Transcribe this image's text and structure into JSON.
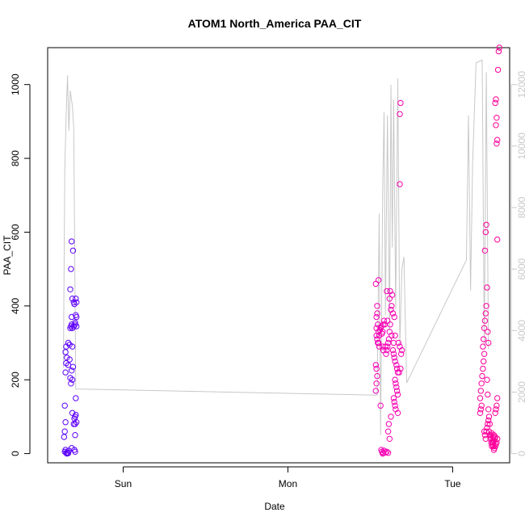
{
  "chart_data": {
    "type": "scatter",
    "title": "ATOM1 North_America PAA_CIT",
    "xlabel": "Date",
    "ylabel": "PAA_CIT",
    "x_ticks": [
      {
        "label": "Sun",
        "x": 24.0
      },
      {
        "label": "Mon",
        "x": 48.0
      },
      {
        "label": "Tue",
        "x": 72.0
      }
    ],
    "xlim": [
      13.0,
      80.3
    ],
    "y_left": {
      "ticks": [
        0,
        200,
        400,
        600,
        800,
        1000
      ],
      "ylim": [
        -25,
        1100
      ]
    },
    "y_right": {
      "ticks": [
        0,
        2000,
        4000,
        6000,
        8000,
        10000,
        12000
      ],
      "ylim": [
        -300,
        13200
      ],
      "color": "#c8c8c8"
    },
    "grid": false,
    "point_style": "open-circle",
    "color_gradient": [
      "#5500ff",
      "#ee00cc",
      "#ff0099"
    ],
    "series": [
      {
        "marker": "circle",
        "points": [
          [
            15.5,
            5
          ],
          [
            15.6,
            10
          ],
          [
            15.7,
            2
          ],
          [
            15.8,
            0
          ],
          [
            15.9,
            3
          ],
          [
            16.0,
            1
          ],
          [
            16.1,
            8
          ],
          [
            15.4,
            45
          ],
          [
            15.5,
            60
          ],
          [
            15.6,
            85
          ],
          [
            15.5,
            130
          ],
          [
            15.6,
            220
          ],
          [
            15.7,
            245
          ],
          [
            15.8,
            260
          ],
          [
            15.6,
            275
          ],
          [
            15.7,
            290
          ],
          [
            16.0,
            240
          ],
          [
            16.2,
            255
          ],
          [
            16.5,
            225
          ],
          [
            16.3,
            205
          ],
          [
            16.4,
            190
          ],
          [
            16.7,
            235
          ],
          [
            16.2,
            295
          ],
          [
            16.6,
            290
          ],
          [
            16.0,
            300
          ],
          [
            16.4,
            345
          ],
          [
            16.6,
            340
          ],
          [
            16.8,
            345
          ],
          [
            16.5,
            350
          ],
          [
            17.0,
            350
          ],
          [
            17.2,
            345
          ],
          [
            16.3,
            340
          ],
          [
            16.5,
            370
          ],
          [
            17.1,
            375
          ],
          [
            17.2,
            370
          ],
          [
            16.8,
            410
          ],
          [
            16.6,
            420
          ],
          [
            17.1,
            420
          ],
          [
            17.2,
            410
          ],
          [
            16.3,
            445
          ],
          [
            16.9,
            405
          ],
          [
            16.4,
            500
          ],
          [
            16.5,
            575
          ],
          [
            16.7,
            550
          ],
          [
            17.0,
            355
          ],
          [
            16.6,
            110
          ],
          [
            16.9,
            95
          ],
          [
            17.0,
            100
          ],
          [
            17.1,
            105
          ],
          [
            17.2,
            85
          ],
          [
            16.8,
            80
          ],
          [
            17.0,
            80
          ],
          [
            16.5,
            15
          ],
          [
            16.9,
            10
          ],
          [
            17.0,
            5
          ],
          [
            17.1,
            150
          ],
          [
            16.6,
            200
          ],
          [
            17.0,
            50
          ],
          [
            60.8,
            170
          ],
          [
            60.9,
            190
          ],
          [
            61.0,
            210
          ],
          [
            60.8,
            240
          ],
          [
            60.9,
            230
          ],
          [
            61.0,
            400
          ],
          [
            60.8,
            460
          ],
          [
            61.2,
            470
          ],
          [
            60.9,
            370
          ],
          [
            61.0,
            380
          ],
          [
            60.9,
            340
          ],
          [
            61.1,
            350
          ],
          [
            60.9,
            320
          ],
          [
            61.0,
            310
          ],
          [
            61.1,
            300
          ],
          [
            61.2,
            330
          ],
          [
            61.3,
            320
          ],
          [
            61.4,
            335
          ],
          [
            61.5,
            340
          ],
          [
            61.6,
            345
          ],
          [
            61.7,
            325
          ],
          [
            61.2,
            300
          ],
          [
            61.3,
            290
          ],
          [
            61.8,
            330
          ],
          [
            61.9,
            350
          ],
          [
            62.0,
            360
          ],
          [
            62.1,
            350
          ],
          [
            61.8,
            290
          ],
          [
            61.9,
            280
          ],
          [
            62.2,
            290
          ],
          [
            62.3,
            270
          ],
          [
            62.4,
            280
          ],
          [
            62.5,
            290
          ],
          [
            62.6,
            300
          ],
          [
            62.7,
            310
          ],
          [
            62.8,
            330
          ],
          [
            62.9,
            350
          ],
          [
            63.0,
            390
          ],
          [
            63.1,
            400
          ],
          [
            62.8,
            420
          ],
          [
            63.2,
            430
          ],
          [
            62.9,
            440
          ],
          [
            63.3,
            380
          ],
          [
            63.5,
            370
          ],
          [
            63.6,
            320
          ],
          [
            63.3,
            280
          ],
          [
            63.4,
            270
          ],
          [
            63.5,
            260
          ],
          [
            63.6,
            250
          ],
          [
            63.8,
            240
          ],
          [
            63.9,
            230
          ],
          [
            64.0,
            220
          ],
          [
            63.6,
            200
          ],
          [
            63.7,
            190
          ],
          [
            63.8,
            180
          ],
          [
            63.9,
            170
          ],
          [
            64.0,
            160
          ],
          [
            63.4,
            150
          ],
          [
            63.5,
            140
          ],
          [
            63.6,
            130
          ],
          [
            63.7,
            120
          ],
          [
            62.6,
            60
          ],
          [
            62.7,
            80
          ],
          [
            63.0,
            100
          ],
          [
            61.5,
            130
          ],
          [
            61.6,
            10
          ],
          [
            61.7,
            5
          ],
          [
            61.8,
            0
          ],
          [
            61.9,
            2
          ],
          [
            62.0,
            8
          ],
          [
            62.2,
            3
          ],
          [
            62.4,
            5
          ],
          [
            62.6,
            2
          ],
          [
            62.8,
            40
          ],
          [
            64.0,
            110
          ],
          [
            64.2,
            220
          ],
          [
            64.4,
            230
          ],
          [
            64.5,
            270
          ],
          [
            64.6,
            280
          ],
          [
            64.3,
            290
          ],
          [
            64.1,
            300
          ],
          [
            64.3,
            920
          ],
          [
            64.4,
            950
          ],
          [
            64.3,
            730
          ],
          [
            62.4,
            440
          ],
          [
            62.5,
            360
          ],
          [
            63.1,
            320
          ],
          [
            63.4,
            300
          ],
          [
            76.0,
            110
          ],
          [
            76.1,
            120
          ],
          [
            76.2,
            130
          ],
          [
            76.0,
            150
          ],
          [
            76.1,
            170
          ],
          [
            76.2,
            190
          ],
          [
            76.3,
            210
          ],
          [
            76.4,
            230
          ],
          [
            76.5,
            250
          ],
          [
            76.6,
            270
          ],
          [
            76.4,
            290
          ],
          [
            76.5,
            310
          ],
          [
            76.6,
            340
          ],
          [
            76.7,
            360
          ],
          [
            76.8,
            380
          ],
          [
            76.9,
            400
          ],
          [
            76.7,
            550
          ],
          [
            76.8,
            600
          ],
          [
            76.9,
            620
          ],
          [
            77.0,
            450
          ],
          [
            77.1,
            330
          ],
          [
            77.2,
            300
          ],
          [
            77.0,
            200
          ],
          [
            77.1,
            160
          ],
          [
            77.2,
            120
          ],
          [
            77.3,
            100
          ],
          [
            77.4,
            80
          ],
          [
            76.6,
            60
          ],
          [
            76.7,
            50
          ],
          [
            76.8,
            40
          ],
          [
            76.9,
            60
          ],
          [
            77.0,
            70
          ],
          [
            77.1,
            80
          ],
          [
            77.2,
            90
          ],
          [
            77.3,
            60
          ],
          [
            77.4,
            50
          ],
          [
            77.5,
            40
          ],
          [
            77.6,
            30
          ],
          [
            77.7,
            20
          ],
          [
            77.8,
            25
          ],
          [
            77.9,
            30
          ],
          [
            78.0,
            35
          ],
          [
            78.1,
            40
          ],
          [
            78.2,
            45
          ],
          [
            77.5,
            45
          ],
          [
            77.6,
            50
          ],
          [
            77.7,
            55
          ],
          [
            77.8,
            30
          ],
          [
            77.9,
            20
          ],
          [
            78.0,
            10
          ],
          [
            78.1,
            15
          ],
          [
            78.2,
            20
          ],
          [
            78.3,
            25
          ],
          [
            78.4,
            30
          ],
          [
            78.5,
            40
          ],
          [
            78.2,
            110
          ],
          [
            78.3,
            120
          ],
          [
            78.4,
            130
          ],
          [
            78.5,
            150
          ],
          [
            78.2,
            950
          ],
          [
            78.3,
            960
          ],
          [
            78.4,
            840
          ],
          [
            78.5,
            850
          ],
          [
            78.3,
            890
          ],
          [
            78.4,
            910
          ],
          [
            78.6,
            1040
          ],
          [
            78.7,
            1090
          ],
          [
            78.8,
            1100
          ],
          [
            78.5,
            580
          ],
          [
            77.9,
            45
          ],
          [
            78.0,
            50
          ]
        ]
      },
      {
        "axis": "right",
        "color": "#c8c8c8",
        "line_points": [
          [
            15.3,
            2800
          ],
          [
            15.5,
            9200
          ],
          [
            15.7,
            11000
          ],
          [
            15.9,
            12300
          ],
          [
            16.1,
            10500
          ],
          [
            16.3,
            11800
          ],
          [
            16.6,
            11300
          ],
          [
            16.8,
            10600
          ],
          [
            17.1,
            2100
          ],
          [
            61.0,
            1900
          ],
          [
            61.3,
            7800
          ],
          [
            61.5,
            600
          ],
          [
            61.8,
            8500
          ],
          [
            62.0,
            11100
          ],
          [
            62.2,
            4500
          ],
          [
            62.5,
            11000
          ],
          [
            62.8,
            4000
          ],
          [
            63.0,
            12000
          ],
          [
            63.2,
            6700
          ],
          [
            63.4,
            11500
          ],
          [
            63.7,
            4700
          ],
          [
            64.0,
            12200
          ],
          [
            64.3,
            3500
          ],
          [
            64.6,
            6000
          ],
          [
            64.9,
            6400
          ],
          [
            65.3,
            2300
          ],
          [
            74.0,
            6300
          ],
          [
            74.3,
            11000
          ],
          [
            74.6,
            5300
          ],
          [
            74.9,
            9400
          ],
          [
            75.4,
            12700
          ],
          [
            76.3,
            12800
          ],
          [
            76.6,
            3500
          ],
          [
            76.9,
            12400
          ],
          [
            77.2,
            3400
          ]
        ]
      }
    ]
  }
}
